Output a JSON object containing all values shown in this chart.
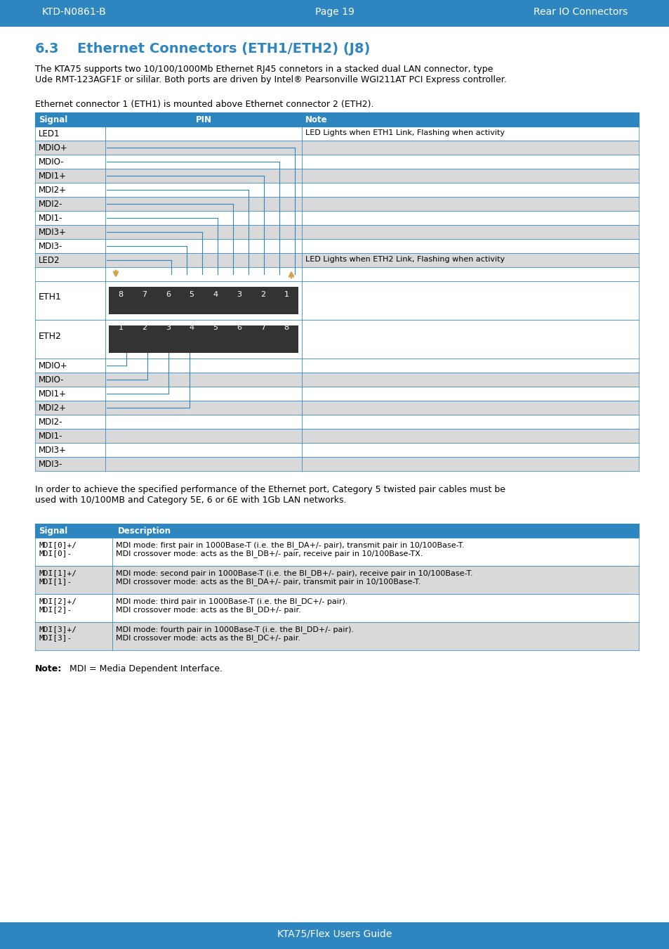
{
  "header_bg": "#2e86c1",
  "header_text_color": "#ffffff",
  "page_bg": "#ffffff",
  "title_color": "#2e86c1",
  "section_num": "6.3",
  "section_title": "Ethernet Connectors (ETH1/ETH2) (J8)",
  "header_left": "KTD-N0861-B",
  "header_center": "Page 19",
  "header_right": "Rear IO Connectors",
  "footer_text": "KTA75/Flex Users Guide",
  "para1": "The KTA75 supports two 10/100/1000Mb Ethernet RJ45 connetors in a stacked dual LAN connector, type\nUde RMT-123AGF1F or sililar. Both ports are driven by Intel® Pearsonville WGI211AT PCI Express controller.",
  "para2": "Ethernet connector 1 (ETH1) is mounted above Ethernet connector 2 (ETH2).",
  "table1_header": [
    "Signal",
    "PIN",
    "Note"
  ],
  "table1_top_signals": [
    "LED1",
    "MDIO+",
    "MDIO-",
    "MDI1+",
    "MDI2+",
    "MDI2-",
    "MDI1-",
    "MDI3+",
    "MDI3-",
    "LED2"
  ],
  "table1_notes": {
    "LED1": "LED Lights when ETH1 Link, Flashing when activity",
    "LED2": "LED Lights when ETH2 Link, Flashing when activity"
  },
  "table1_bottom_signals": [
    "MDIO+",
    "MDIO-",
    "MDI1+",
    "MDI2+",
    "MDI2-",
    "MDI1-",
    "MDI3+",
    "MDI3-"
  ],
  "eth1_pins": [
    "8",
    "7",
    "6",
    "5",
    "4",
    "3",
    "2",
    "1"
  ],
  "eth2_pins": [
    "1",
    "2",
    "3",
    "4",
    "5",
    "6",
    "7",
    "8"
  ],
  "connector_bg": "#333333",
  "connector_text": "#ffffff",
  "table_border": "#2e86c1",
  "row_alt_bg": "#d9d9d9",
  "row_white_bg": "#ffffff",
  "para3": "In order to achieve the specified performance of the Ethernet port, Category 5 twisted pair cables must be\nused with 10/100MB and Category 5E, 6 or 6E with 1Gb LAN networks.",
  "table2_header": [
    "Signal",
    "Description"
  ],
  "table2_rows": [
    [
      "MDI[0]+/\nMDI[0]-",
      "MDI mode: first pair in 1000Base-T (i.e. the BI_DA+/- pair), transmit pair in 10/100Base-T.\nMDI crossover mode: acts as the BI_DB+/- pair, receive pair in 10/100Base-TX."
    ],
    [
      "MDI[1]+/\nMDI[1]-",
      "MDI mode: second pair in 1000Base-T (i.e. the BI_DB+/- pair), receive pair in 10/100Base-T.\nMDI crossover mode: acts as the BI_DA+/- pair, transmit pair in 10/100Base-T."
    ],
    [
      "MDI[2]+/\nMDI[2]-",
      "MDI mode: third pair in 1000Base-T (i.e. the BI_DC+/- pair).\nMDI crossover mode: acts as the BI_DD+/- pair."
    ],
    [
      "MDI[3]+/\nMDI[3]-",
      "MDI mode: fourth pair in 1000Base-T (i.e. the BI_DD+/- pair).\nMDI crossover mode: acts as the BI_DC+/- pair."
    ]
  ],
  "note_text": "Note: MDI = Media Dependent Interface."
}
